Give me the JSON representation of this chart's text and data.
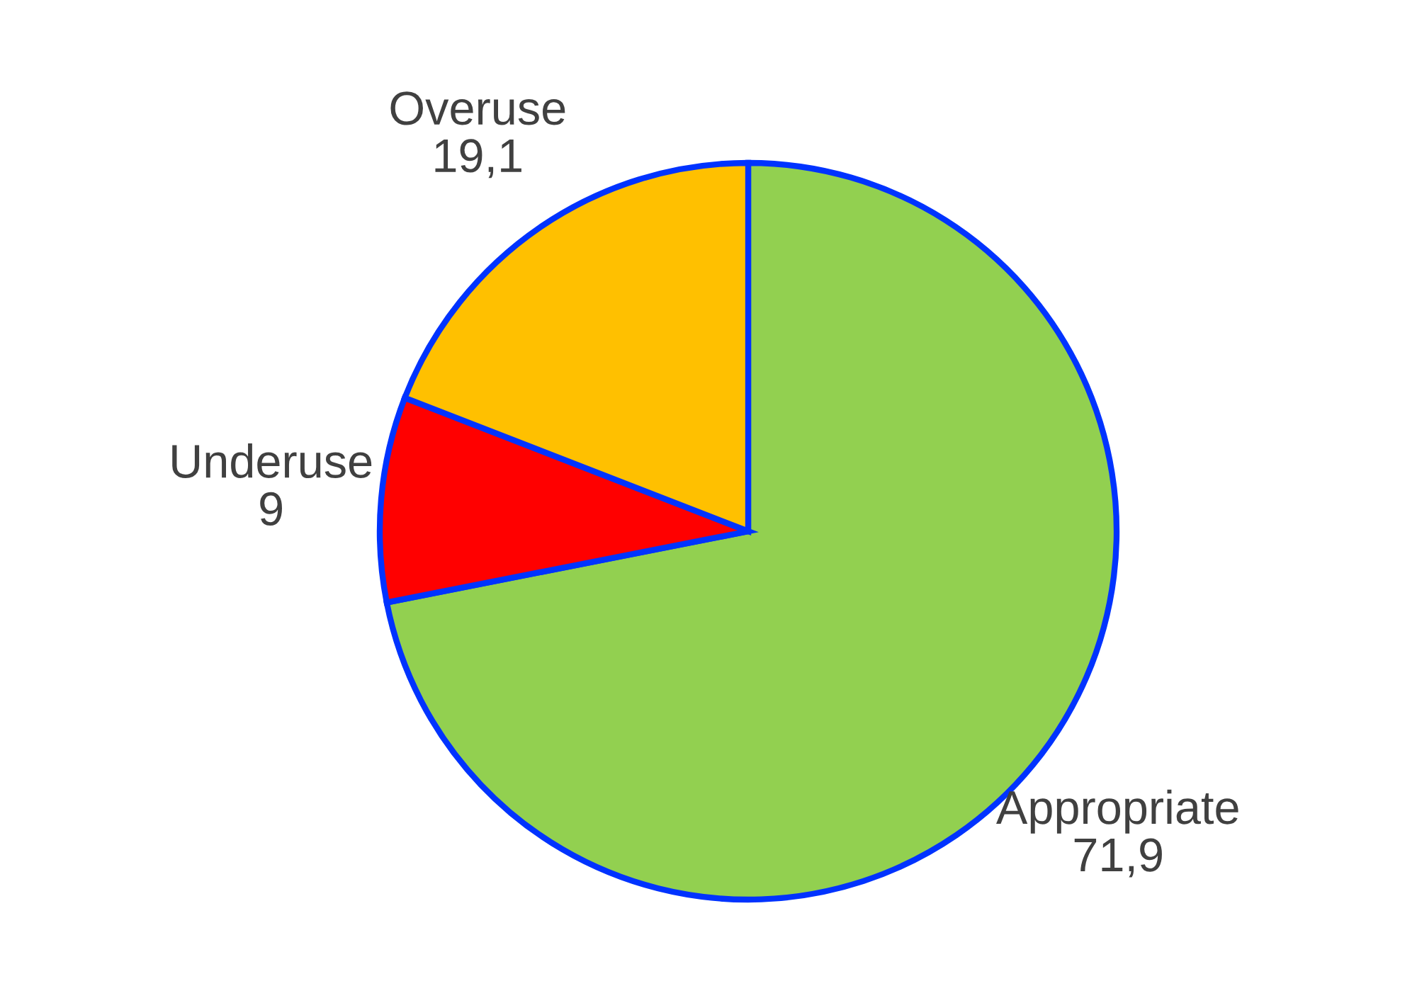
{
  "chart_data": {
    "type": "pie",
    "categories": [
      "Appropriate",
      "Underuse",
      "Overuse"
    ],
    "values": [
      71.9,
      9,
      19.1
    ],
    "colors": [
      "#92d050",
      "#ff0000",
      "#ffc000"
    ],
    "value_labels": [
      "71,9",
      "9",
      "19,1"
    ]
  }
}
